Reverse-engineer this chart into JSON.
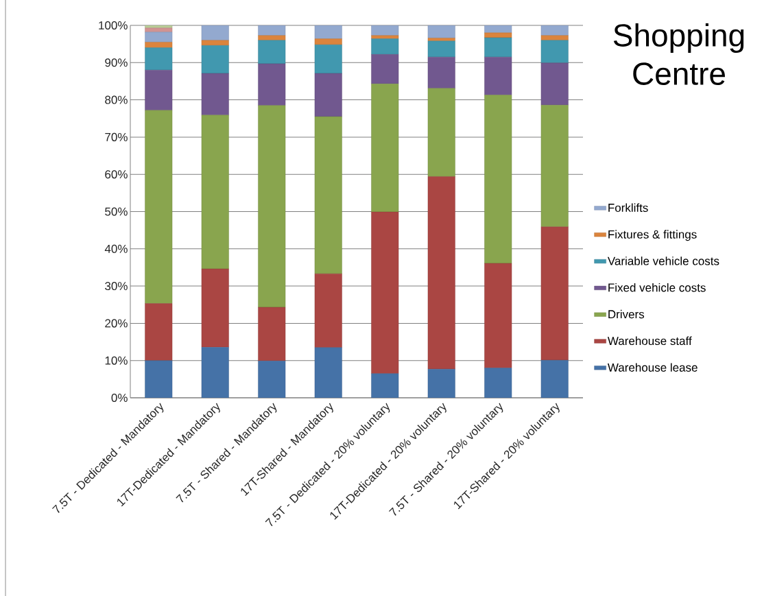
{
  "chart_data": {
    "type": "bar",
    "title": "Shopping Centre",
    "stacked": true,
    "categories": [
      "7.5T - Dedicated - Mandatory",
      "17T-Dedicated - Mandatory",
      "7.5T - Shared - Mandatory",
      "17T-Shared - Mandatory",
      "7.5T - Dedicated - 20% voluntary",
      "17T-Dedicated - 20% voluntary",
      "7.5T - Shared - 20% voluntary",
      "17T-Shared - 20% voluntary"
    ],
    "series": [
      {
        "name": "Warehouse lease",
        "color": "#4572a7",
        "values": [
          10,
          13.6,
          9.9,
          13.5,
          6.5,
          7.7,
          8.0,
          10.1
        ]
      },
      {
        "name": "Warehouse staff",
        "color": "#aa4643",
        "values": [
          15.3,
          21.0,
          14.4,
          19.8,
          43.4,
          51.7,
          28.1,
          35.8
        ]
      },
      {
        "name": "Drivers",
        "color": "#89a54e",
        "values": [
          51.9,
          41.3,
          54.2,
          42.2,
          34.4,
          23.7,
          45.2,
          32.7
        ]
      },
      {
        "name": "Fixed vehicle costs",
        "color": "#71588f",
        "values": [
          10.8,
          11.2,
          11.2,
          11.6,
          7.9,
          8.4,
          10.2,
          11.3
        ]
      },
      {
        "name": "Variable vehicle costs",
        "color": "#4198af",
        "values": [
          6.0,
          7.5,
          6.3,
          7.7,
          4.2,
          4.3,
          5.2,
          6.1
        ]
      },
      {
        "name": "Fixtures & fittings",
        "color": "#db843d",
        "values": [
          1.5,
          1.4,
          1.3,
          1.6,
          0.9,
          0.8,
          1.3,
          1.3
        ]
      },
      {
        "name": "Forklifts",
        "color": "#93a9cf",
        "values": [
          2.7,
          4.0,
          2.7,
          3.6,
          2.7,
          3.4,
          2.0,
          2.7
        ]
      },
      {
        "color": "#d19392",
        "values": [
          1.1,
          null,
          null,
          null,
          null,
          null,
          null,
          null
        ]
      },
      {
        "color": "#b9cd96",
        "values": [
          0.7,
          null,
          null,
          null,
          null,
          null,
          null,
          null
        ]
      }
    ],
    "ylim": [
      0,
      100
    ],
    "yticks": [
      {
        "value": 0,
        "label": "0%"
      },
      {
        "value": 10,
        "label": "10%"
      },
      {
        "value": 20,
        "label": "20%"
      },
      {
        "value": 30,
        "label": "30%"
      },
      {
        "value": 40,
        "label": "40%"
      },
      {
        "value": 50,
        "label": "50%"
      },
      {
        "value": 60,
        "label": "60%"
      },
      {
        "value": 70,
        "label": "70%"
      },
      {
        "value": 80,
        "label": "80%"
      },
      {
        "value": 90,
        "label": "90%"
      },
      {
        "value": 100,
        "label": "100%"
      }
    ],
    "grid": "y",
    "legend": "right"
  }
}
